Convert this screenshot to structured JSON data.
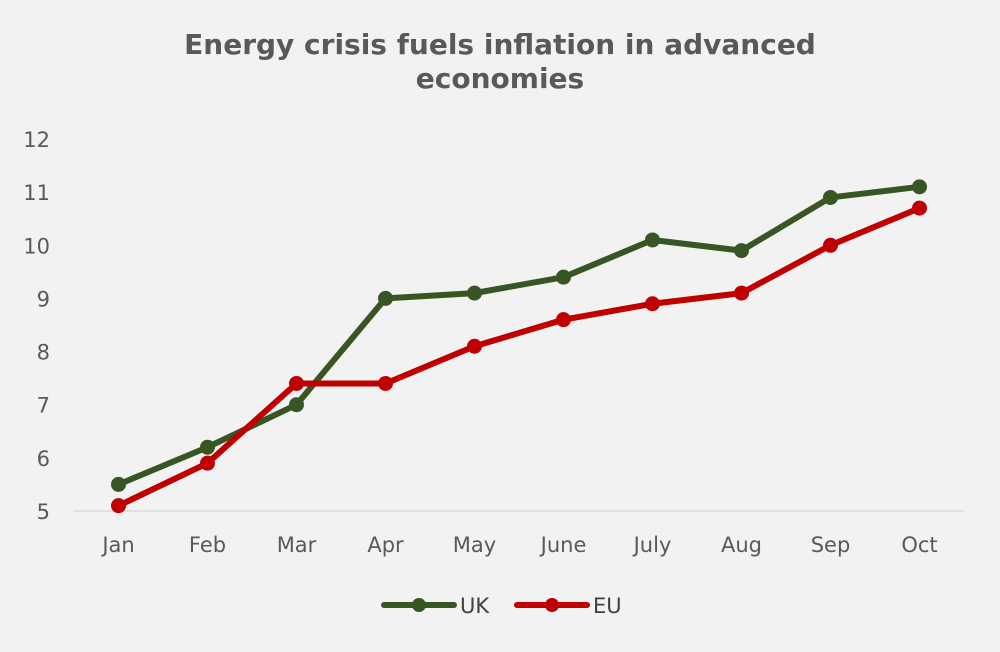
{
  "chart_data": {
    "type": "line",
    "title": [
      "Energy crisis fuels inflation in advanced",
      "economies"
    ],
    "xlabel": "",
    "ylabel": "",
    "categories": [
      "Jan",
      "Feb",
      "Mar",
      "Apr",
      "May",
      "June",
      "July",
      "Aug",
      "Sep",
      "Oct"
    ],
    "ylim": [
      5,
      12
    ],
    "yticks": [
      "5",
      "6",
      "7",
      "8",
      "9",
      "10",
      "11",
      "12"
    ],
    "grid": false,
    "legend_position": "bottom",
    "series": [
      {
        "name": "UK",
        "color": "#375623",
        "values": [
          5.5,
          6.2,
          7.0,
          9.0,
          9.1,
          9.4,
          10.1,
          9.9,
          10.9,
          11.1
        ]
      },
      {
        "name": "EU",
        "color": "#c00000",
        "values": [
          5.1,
          5.9,
          7.4,
          7.4,
          8.1,
          8.6,
          8.9,
          9.1,
          10.0,
          10.7
        ]
      }
    ]
  }
}
